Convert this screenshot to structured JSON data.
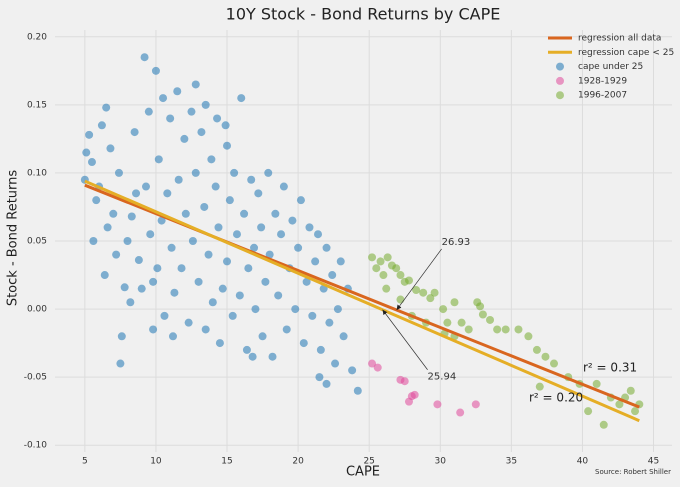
{
  "chart_data": {
    "type": "scatter",
    "title": "10Y Stock - Bond Returns by CAPE",
    "x_label": "CAPE",
    "y_label": "Stock - Bond Returns",
    "source": "Source: Robert Shiller",
    "xlim": [
      2.9,
      46.3
    ],
    "ylim": [
      -0.105,
      0.205
    ],
    "xticks": [
      5,
      10,
      15,
      20,
      25,
      30,
      35,
      40,
      45
    ],
    "yticks": [
      {
        "value": -0.1,
        "label": "-0.10"
      },
      -0.05,
      {
        "value": 0,
        "label": "0.00"
      },
      0.05,
      {
        "value": 0.1,
        "label": "0.10"
      },
      0.15,
      {
        "value": 0.2,
        "label": "0.20"
      }
    ],
    "grid": true,
    "legend": "upper right",
    "series": [
      {
        "name": "regression all data",
        "type": "line",
        "color": "#d9661f",
        "x": [
          5,
          44
        ],
        "values": [
          0.091,
          -0.072
        ],
        "label": "r² = 0.31"
      },
      {
        "name": "regression cape < 25",
        "type": "line",
        "color": "#e5ae26",
        "x": [
          5,
          44
        ],
        "values": [
          0.094,
          -0.082
        ],
        "label": "r² = 0.20"
      },
      {
        "name": "cape under 25",
        "type": "scatter",
        "color": "#1f77b4",
        "x": [
          5.0,
          5.1,
          5.3,
          5.5,
          5.6,
          5.8,
          6.0,
          6.2,
          6.4,
          6.5,
          6.6,
          6.8,
          7.0,
          7.2,
          7.4,
          7.5,
          7.6,
          7.8,
          8.0,
          8.2,
          8.3,
          8.5,
          8.6,
          8.8,
          9.0,
          9.2,
          9.3,
          9.5,
          9.6,
          9.8,
          10.0,
          10.1,
          10.2,
          10.4,
          10.5,
          10.6,
          10.8,
          11.0,
          11.1,
          11.3,
          11.5,
          11.6,
          11.8,
          12.0,
          12.1,
          12.3,
          12.5,
          12.6,
          12.8,
          13.0,
          13.2,
          13.4,
          13.5,
          13.7,
          13.9,
          14.0,
          14.2,
          14.4,
          14.5,
          14.7,
          14.9,
          15.0,
          15.2,
          15.4,
          15.5,
          15.7,
          15.9,
          16.0,
          16.2,
          16.4,
          16.5,
          16.7,
          16.9,
          17.0,
          17.2,
          17.4,
          17.5,
          17.7,
          17.9,
          18.0,
          18.2,
          18.4,
          18.6,
          18.8,
          19.0,
          19.2,
          19.4,
          19.6,
          19.8,
          20.0,
          20.2,
          20.4,
          20.6,
          20.8,
          21.0,
          21.2,
          21.4,
          21.6,
          21.8,
          22.0,
          22.2,
          22.4,
          22.6,
          22.8,
          23.0,
          23.2,
          23.5,
          23.8,
          24.2,
          21.5,
          22.0,
          12.8,
          13.5,
          11.2,
          9.8,
          16.8,
          15.0,
          14.3
        ],
        "values": [
          0.095,
          0.115,
          0.128,
          0.108,
          0.05,
          0.08,
          0.09,
          0.135,
          0.025,
          0.148,
          0.06,
          0.118,
          0.07,
          0.04,
          0.1,
          -0.04,
          -0.02,
          0.016,
          0.05,
          0.005,
          0.068,
          0.13,
          0.085,
          0.036,
          0.015,
          0.185,
          0.09,
          0.145,
          0.055,
          0.02,
          0.175,
          0.03,
          0.11,
          0.065,
          0.155,
          -0.005,
          0.085,
          0.14,
          0.045,
          0.012,
          0.16,
          0.095,
          0.03,
          0.125,
          0.07,
          -0.01,
          0.145,
          0.05,
          0.1,
          0.02,
          0.13,
          0.075,
          -0.015,
          0.04,
          0.11,
          0.005,
          0.09,
          0.06,
          -0.025,
          0.015,
          0.135,
          0.035,
          0.08,
          -0.005,
          0.1,
          0.055,
          0.01,
          0.155,
          0.07,
          -0.03,
          0.03,
          0.095,
          0.045,
          0.0,
          0.085,
          0.06,
          -0.02,
          0.02,
          0.1,
          0.04,
          -0.035,
          0.07,
          0.01,
          0.055,
          0.09,
          -0.015,
          0.03,
          0.065,
          0.0,
          0.045,
          0.08,
          -0.025,
          0.02,
          0.06,
          -0.005,
          0.035,
          0.055,
          -0.03,
          0.015,
          0.045,
          -0.01,
          0.025,
          -0.04,
          0.0,
          0.035,
          -0.02,
          0.015,
          -0.045,
          -0.06,
          -0.05,
          -0.055,
          0.165,
          0.15,
          -0.02,
          -0.015,
          -0.035,
          0.12,
          0.14
        ]
      },
      {
        "name": "1928-1929",
        "type": "scatter",
        "color": "#e0489a",
        "x": [
          25.2,
          25.6,
          27.2,
          27.5,
          28.0,
          28.2,
          27.8,
          29.8,
          31.4,
          32.5
        ],
        "values": [
          -0.04,
          -0.043,
          -0.052,
          -0.053,
          -0.064,
          -0.063,
          -0.068,
          -0.07,
          -0.076,
          -0.07
        ]
      },
      {
        "name": "1996-2007",
        "type": "scatter",
        "color": "#77ac30",
        "x": [
          25.2,
          25.5,
          25.8,
          26.0,
          26.3,
          26.6,
          26.9,
          27.2,
          27.5,
          27.8,
          28.3,
          28.8,
          29.3,
          29.6,
          30.2,
          30.5,
          31.0,
          31.5,
          32.0,
          32.6,
          32.8,
          33.0,
          33.5,
          34.0,
          34.6,
          35.5,
          36.2,
          36.8,
          37.4,
          37.0,
          38.0,
          39.0,
          39.8,
          40.4,
          41.0,
          41.5,
          42.0,
          42.6,
          43.0,
          43.4,
          43.7,
          44.0,
          30.3,
          28.0,
          27.2,
          26.2,
          31.0,
          29.0
        ],
        "values": [
          0.038,
          0.03,
          0.035,
          0.025,
          0.038,
          0.032,
          0.03,
          0.025,
          0.02,
          0.021,
          0.014,
          0.012,
          0.008,
          0.012,
          0.0,
          -0.01,
          0.005,
          -0.01,
          -0.015,
          0.005,
          0.002,
          -0.004,
          -0.008,
          -0.015,
          -0.015,
          -0.015,
          -0.02,
          -0.03,
          -0.035,
          -0.057,
          -0.04,
          -0.05,
          -0.055,
          -0.075,
          -0.055,
          -0.085,
          -0.065,
          -0.07,
          -0.065,
          -0.06,
          -0.075,
          -0.07,
          -0.018,
          -0.005,
          0.007,
          0.015,
          -0.02,
          -0.01
        ]
      }
    ],
    "annotations": [
      {
        "text": "26.93",
        "x": 26.93
      },
      {
        "text": "25.94",
        "x": 25.94
      }
    ]
  }
}
